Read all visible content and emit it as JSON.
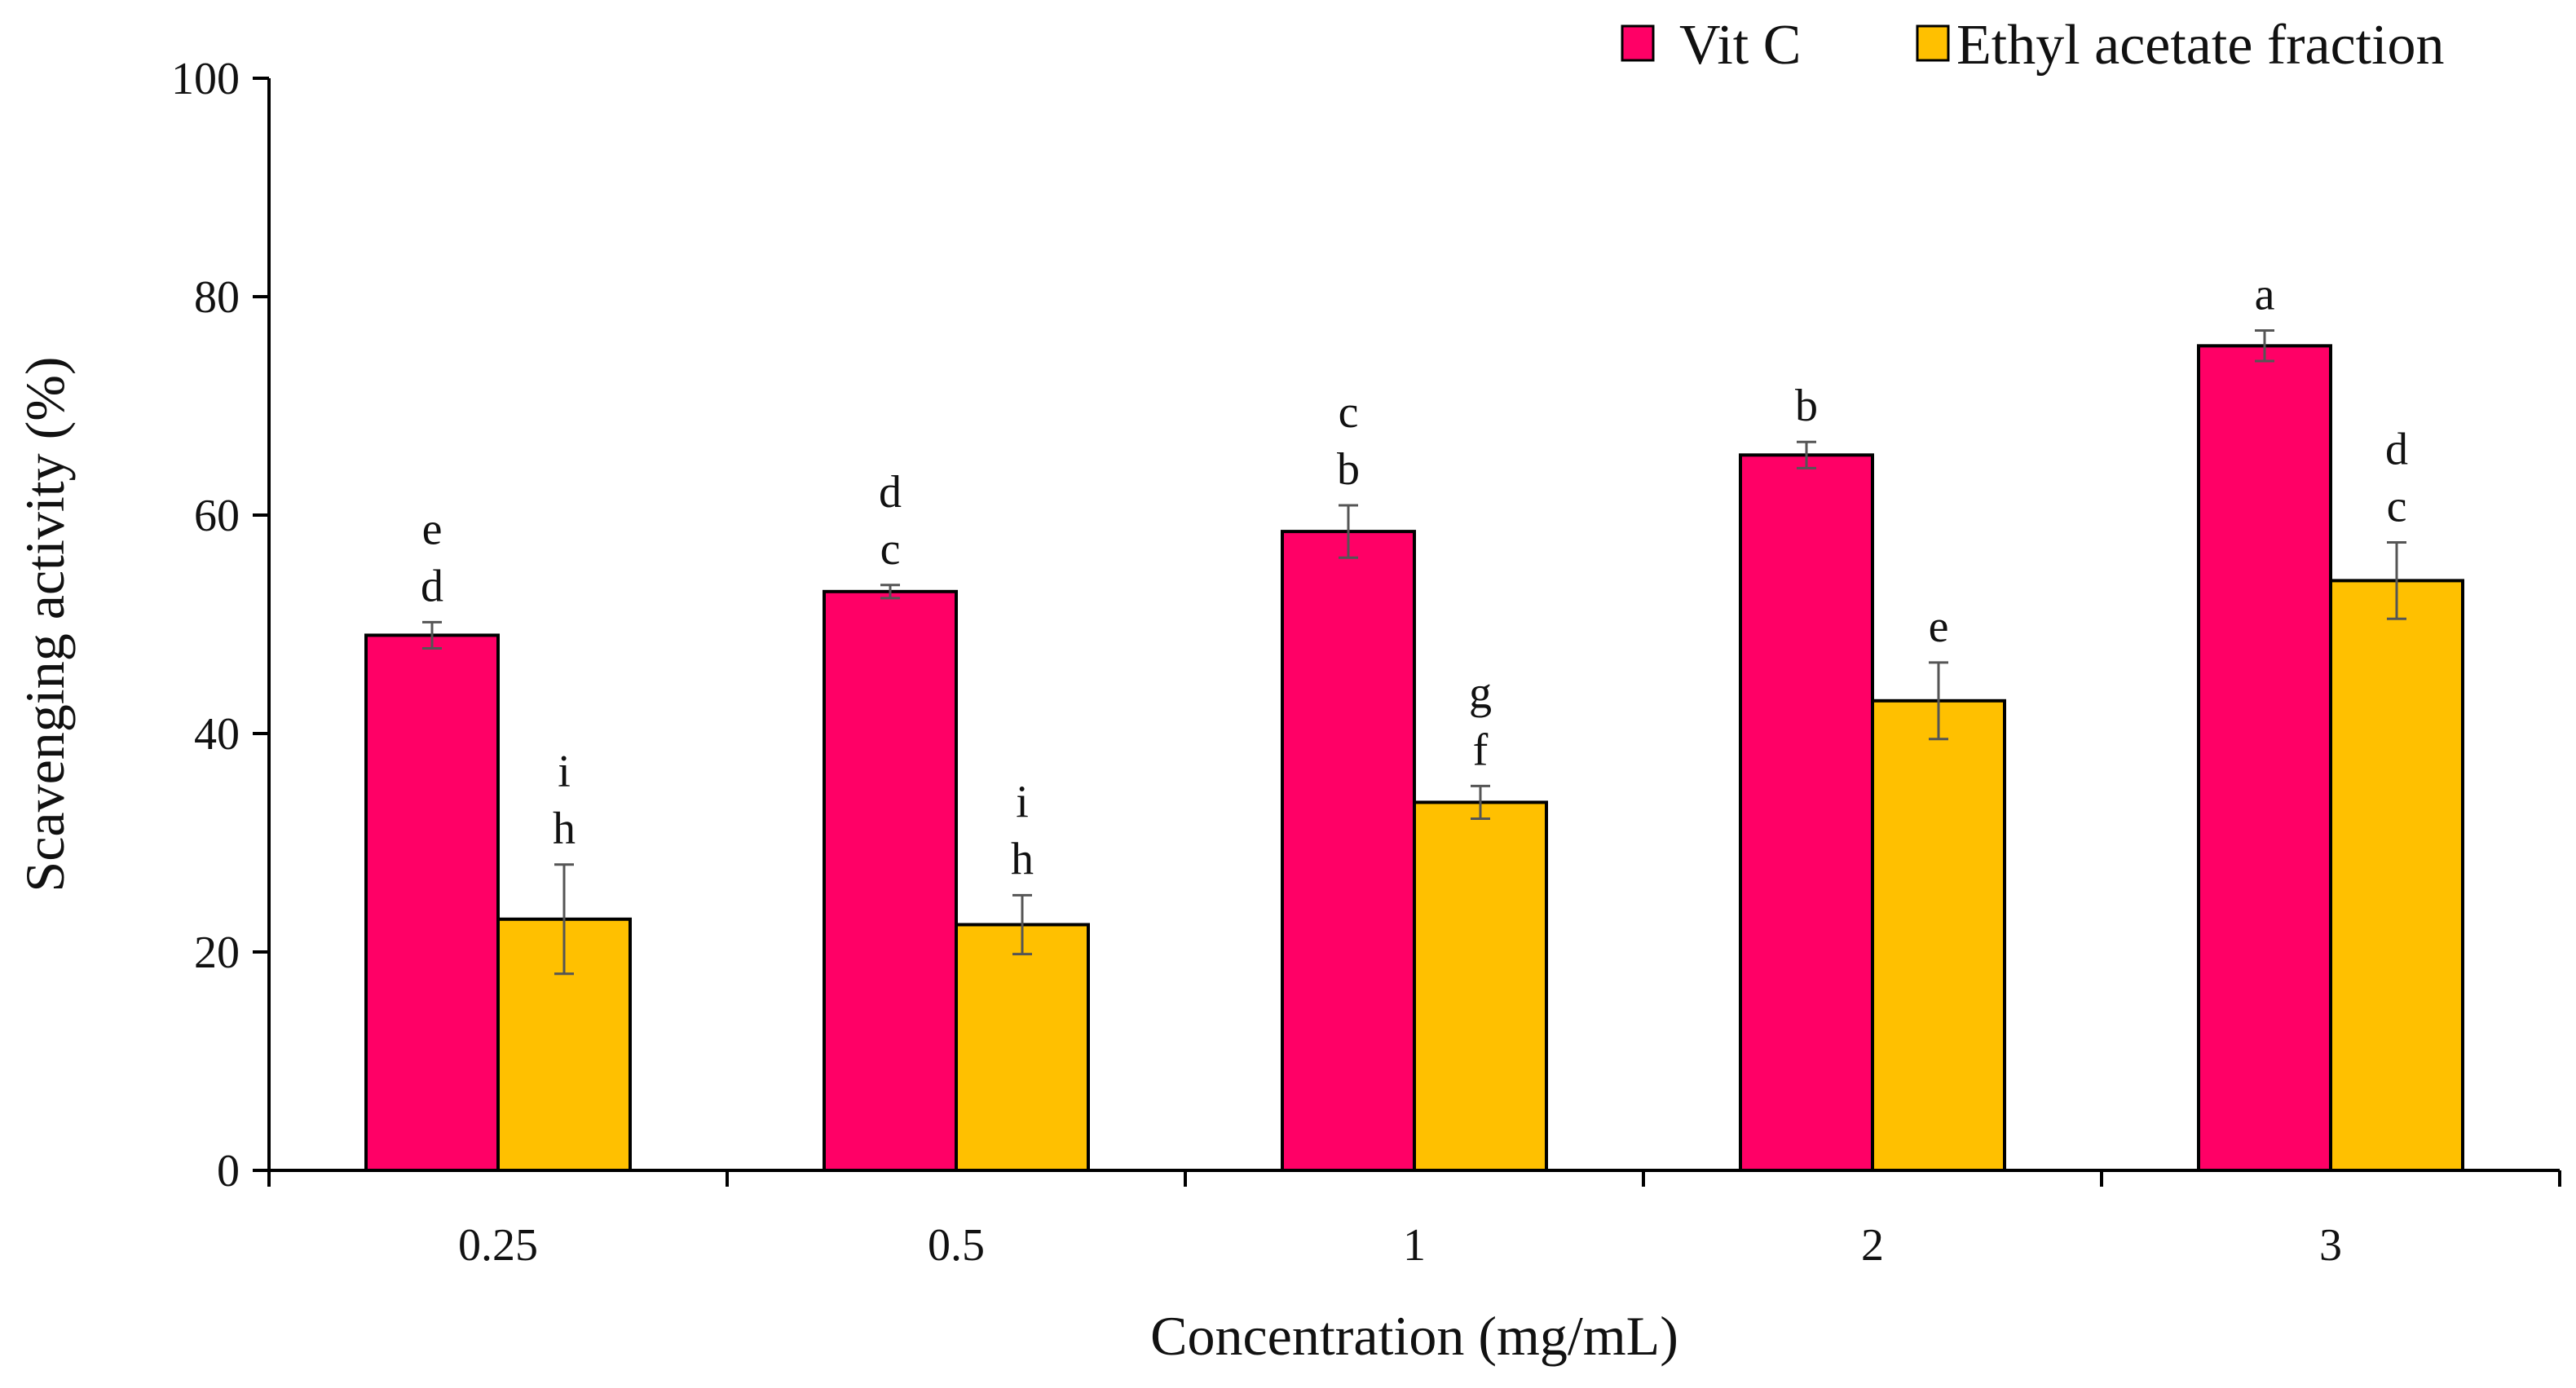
{
  "chart_data": {
    "type": "bar",
    "title": "",
    "xlabel": "Concentration (mg/mL)",
    "ylabel": "Scavenging activity (%)",
    "categories": [
      "0.25",
      "0.5",
      "1",
      "2",
      "3"
    ],
    "ylim": [
      0,
      100
    ],
    "yticks": [
      0,
      20,
      40,
      60,
      80,
      100
    ],
    "grid": false,
    "legend_position": "top-right",
    "series": [
      {
        "name": "Vit C",
        "color": "#FF0066",
        "values": [
          49,
          53,
          58.5,
          65.5,
          75.5
        ],
        "errors": [
          1.2,
          0.6,
          2.4,
          1.2,
          1.4
        ],
        "significance": [
          "e\nd",
          "d\nc",
          "c\nb",
          "b",
          "a"
        ]
      },
      {
        "name": "Ethyl acetate fraction",
        "color": "#FFC000",
        "values": [
          23,
          22.5,
          33.7,
          43,
          54
        ],
        "errors": [
          5,
          2.7,
          1.5,
          3.5,
          3.5
        ],
        "significance": [
          "i\nh",
          "i\nh",
          "g\nf",
          "e",
          "d\nc"
        ]
      }
    ]
  }
}
